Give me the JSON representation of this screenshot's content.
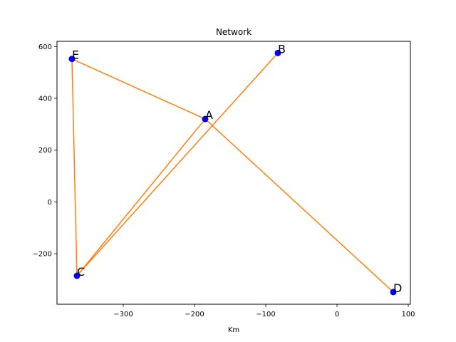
{
  "chart_data": {
    "type": "scatter",
    "title": "Network",
    "xlabel": "Km",
    "ylabel": "",
    "xlim": [
      -393,
      103
    ],
    "ylim": [
      -395,
      620
    ],
    "xticks": [
      -300,
      -200,
      -100,
      0,
      100
    ],
    "yticks": [
      -200,
      0,
      200,
      400,
      600
    ],
    "grid": false,
    "nodes": [
      {
        "label": "A",
        "x": -185,
        "y": 320
      },
      {
        "label": "B",
        "x": -83,
        "y": 575
      },
      {
        "label": "C",
        "x": -365,
        "y": -285
      },
      {
        "label": "D",
        "x": 79,
        "y": -348
      },
      {
        "label": "E",
        "x": -372,
        "y": 552
      }
    ],
    "edges": [
      [
        "A",
        "C"
      ],
      [
        "C",
        "B"
      ],
      [
        "C",
        "E"
      ],
      [
        "E",
        "A"
      ],
      [
        "A",
        "D"
      ]
    ],
    "colors": {
      "node": "#0000ff",
      "edge": "#ff7f0e"
    }
  }
}
